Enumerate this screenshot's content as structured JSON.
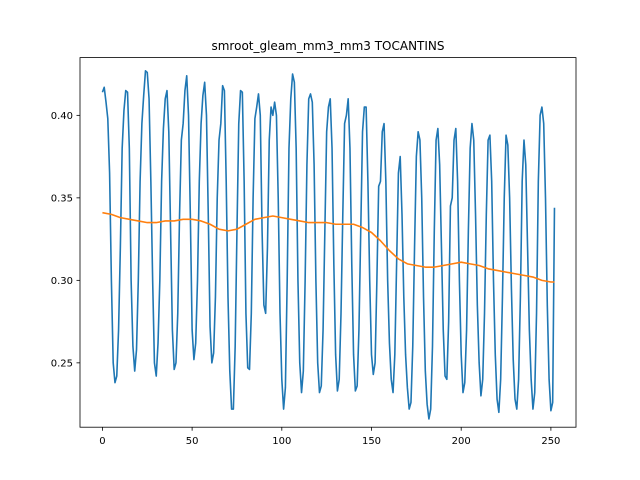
{
  "chart_data": {
    "type": "line",
    "title": "smroot_gleam_mm3_mm3 TOCANTINS",
    "xlabel": "",
    "ylabel": "",
    "xlim": [
      -12.5,
      264
    ],
    "ylim": [
      0.211,
      0.435
    ],
    "xticks": [
      0,
      50,
      100,
      150,
      200,
      250
    ],
    "yticks": [
      0.25,
      0.3,
      0.35,
      0.4
    ],
    "ytick_labels": [
      "0.25",
      "0.30",
      "0.35",
      "0.40"
    ],
    "grid": false,
    "legend": "none",
    "series": [
      {
        "color": "#1f77b4",
        "points": [
          [
            0,
            0.414
          ],
          [
            1,
            0.417
          ],
          [
            2,
            0.408
          ],
          [
            3,
            0.398
          ],
          [
            4,
            0.365
          ],
          [
            5,
            0.3
          ],
          [
            6,
            0.25
          ],
          [
            7,
            0.238
          ],
          [
            8,
            0.242
          ],
          [
            9,
            0.27
          ],
          [
            10,
            0.32
          ],
          [
            11,
            0.38
          ],
          [
            12,
            0.403
          ],
          [
            13,
            0.415
          ],
          [
            14,
            0.414
          ],
          [
            15,
            0.38
          ],
          [
            16,
            0.3
          ],
          [
            17,
            0.26
          ],
          [
            18,
            0.245
          ],
          [
            19,
            0.258
          ],
          [
            20,
            0.3
          ],
          [
            21,
            0.36
          ],
          [
            22,
            0.395
          ],
          [
            23,
            0.412
          ],
          [
            24,
            0.427
          ],
          [
            25,
            0.426
          ],
          [
            26,
            0.41
          ],
          [
            27,
            0.36
          ],
          [
            28,
            0.3
          ],
          [
            29,
            0.25
          ],
          [
            30,
            0.242
          ],
          [
            31,
            0.262
          ],
          [
            32,
            0.3
          ],
          [
            33,
            0.36
          ],
          [
            34,
            0.392
          ],
          [
            35,
            0.41
          ],
          [
            36,
            0.415
          ],
          [
            37,
            0.39
          ],
          [
            38,
            0.33
          ],
          [
            39,
            0.27
          ],
          [
            40,
            0.246
          ],
          [
            41,
            0.25
          ],
          [
            42,
            0.28
          ],
          [
            43,
            0.34
          ],
          [
            44,
            0.385
          ],
          [
            45,
            0.395
          ],
          [
            46,
            0.415
          ],
          [
            47,
            0.424
          ],
          [
            48,
            0.4
          ],
          [
            49,
            0.34
          ],
          [
            50,
            0.27
          ],
          [
            51,
            0.252
          ],
          [
            52,
            0.262
          ],
          [
            53,
            0.3
          ],
          [
            54,
            0.36
          ],
          [
            55,
            0.395
          ],
          [
            56,
            0.412
          ],
          [
            57,
            0.42
          ],
          [
            58,
            0.4
          ],
          [
            59,
            0.34
          ],
          [
            60,
            0.272
          ],
          [
            61,
            0.25
          ],
          [
            62,
            0.256
          ],
          [
            63,
            0.29
          ],
          [
            64,
            0.35
          ],
          [
            65,
            0.385
          ],
          [
            66,
            0.395
          ],
          [
            67,
            0.418
          ],
          [
            68,
            0.415
          ],
          [
            69,
            0.36
          ],
          [
            70,
            0.29
          ],
          [
            71,
            0.245
          ],
          [
            72,
            0.222
          ],
          [
            73,
            0.222
          ],
          [
            74,
            0.26
          ],
          [
            75,
            0.33
          ],
          [
            76,
            0.395
          ],
          [
            77,
            0.415
          ],
          [
            78,
            0.414
          ],
          [
            79,
            0.36
          ],
          [
            80,
            0.28
          ],
          [
            81,
            0.247
          ],
          [
            82,
            0.246
          ],
          [
            83,
            0.28
          ],
          [
            84,
            0.35
          ],
          [
            85,
            0.398
          ],
          [
            86,
            0.405
          ],
          [
            87,
            0.413
          ],
          [
            88,
            0.4
          ],
          [
            89,
            0.33
          ],
          [
            90,
            0.285
          ],
          [
            91,
            0.28
          ],
          [
            92,
            0.32
          ],
          [
            93,
            0.385
          ],
          [
            94,
            0.405
          ],
          [
            95,
            0.4
          ],
          [
            96,
            0.408
          ],
          [
            97,
            0.4
          ],
          [
            98,
            0.35
          ],
          [
            99,
            0.28
          ],
          [
            100,
            0.24
          ],
          [
            101,
            0.222
          ],
          [
            102,
            0.235
          ],
          [
            103,
            0.3
          ],
          [
            104,
            0.38
          ],
          [
            105,
            0.41
          ],
          [
            106,
            0.425
          ],
          [
            107,
            0.42
          ],
          [
            108,
            0.38
          ],
          [
            109,
            0.3
          ],
          [
            110,
            0.25
          ],
          [
            111,
            0.232
          ],
          [
            112,
            0.245
          ],
          [
            113,
            0.3
          ],
          [
            114,
            0.37
          ],
          [
            115,
            0.41
          ],
          [
            116,
            0.413
          ],
          [
            117,
            0.408
          ],
          [
            118,
            0.37
          ],
          [
            119,
            0.3
          ],
          [
            120,
            0.25
          ],
          [
            121,
            0.232
          ],
          [
            122,
            0.236
          ],
          [
            123,
            0.27
          ],
          [
            124,
            0.33
          ],
          [
            125,
            0.39
          ],
          [
            126,
            0.405
          ],
          [
            127,
            0.41
          ],
          [
            128,
            0.38
          ],
          [
            129,
            0.31
          ],
          [
            130,
            0.255
          ],
          [
            131,
            0.233
          ],
          [
            132,
            0.24
          ],
          [
            133,
            0.28
          ],
          [
            134,
            0.34
          ],
          [
            135,
            0.395
          ],
          [
            136,
            0.4
          ],
          [
            137,
            0.41
          ],
          [
            138,
            0.38
          ],
          [
            139,
            0.31
          ],
          [
            140,
            0.255
          ],
          [
            141,
            0.233
          ],
          [
            142,
            0.236
          ],
          [
            143,
            0.27
          ],
          [
            144,
            0.33
          ],
          [
            145,
            0.39
          ],
          [
            146,
            0.405
          ],
          [
            147,
            0.405
          ],
          [
            148,
            0.36
          ],
          [
            149,
            0.3
          ],
          [
            150,
            0.255
          ],
          [
            151,
            0.243
          ],
          [
            152,
            0.25
          ],
          [
            153,
            0.3
          ],
          [
            154,
            0.357
          ],
          [
            155,
            0.36
          ],
          [
            156,
            0.39
          ],
          [
            157,
            0.395
          ],
          [
            158,
            0.36
          ],
          [
            159,
            0.3
          ],
          [
            160,
            0.262
          ],
          [
            161,
            0.24
          ],
          [
            162,
            0.232
          ],
          [
            163,
            0.255
          ],
          [
            164,
            0.31
          ],
          [
            165,
            0.365
          ],
          [
            166,
            0.375
          ],
          [
            167,
            0.34
          ],
          [
            168,
            0.29
          ],
          [
            169,
            0.255
          ],
          [
            170,
            0.235
          ],
          [
            171,
            0.222
          ],
          [
            172,
            0.226
          ],
          [
            173,
            0.26
          ],
          [
            174,
            0.32
          ],
          [
            175,
            0.375
          ],
          [
            176,
            0.39
          ],
          [
            177,
            0.385
          ],
          [
            178,
            0.35
          ],
          [
            179,
            0.29
          ],
          [
            180,
            0.245
          ],
          [
            181,
            0.225
          ],
          [
            182,
            0.216
          ],
          [
            183,
            0.222
          ],
          [
            184,
            0.26
          ],
          [
            185,
            0.33
          ],
          [
            186,
            0.385
          ],
          [
            187,
            0.392
          ],
          [
            188,
            0.37
          ],
          [
            189,
            0.32
          ],
          [
            190,
            0.27
          ],
          [
            191,
            0.242
          ],
          [
            192,
            0.24
          ],
          [
            193,
            0.275
          ],
          [
            194,
            0.345
          ],
          [
            195,
            0.35
          ],
          [
            196,
            0.385
          ],
          [
            197,
            0.392
          ],
          [
            198,
            0.36
          ],
          [
            199,
            0.3
          ],
          [
            200,
            0.255
          ],
          [
            201,
            0.232
          ],
          [
            202,
            0.238
          ],
          [
            203,
            0.27
          ],
          [
            204,
            0.33
          ],
          [
            205,
            0.38
          ],
          [
            206,
            0.395
          ],
          [
            207,
            0.385
          ],
          [
            208,
            0.34
          ],
          [
            209,
            0.285
          ],
          [
            210,
            0.25
          ],
          [
            211,
            0.23
          ],
          [
            212,
            0.24
          ],
          [
            213,
            0.28
          ],
          [
            214,
            0.34
          ],
          [
            215,
            0.385
          ],
          [
            216,
            0.388
          ],
          [
            217,
            0.36
          ],
          [
            218,
            0.3
          ],
          [
            219,
            0.255
          ],
          [
            220,
            0.228
          ],
          [
            221,
            0.22
          ],
          [
            222,
            0.24
          ],
          [
            223,
            0.29
          ],
          [
            224,
            0.35
          ],
          [
            225,
            0.388
          ],
          [
            226,
            0.382
          ],
          [
            227,
            0.35
          ],
          [
            228,
            0.295
          ],
          [
            229,
            0.252
          ],
          [
            230,
            0.228
          ],
          [
            231,
            0.222
          ],
          [
            232,
            0.24
          ],
          [
            233,
            0.29
          ],
          [
            234,
            0.36
          ],
          [
            235,
            0.385
          ],
          [
            236,
            0.37
          ],
          [
            237,
            0.32
          ],
          [
            238,
            0.27
          ],
          [
            239,
            0.24
          ],
          [
            240,
            0.222
          ],
          [
            241,
            0.232
          ],
          [
            242,
            0.28
          ],
          [
            243,
            0.36
          ],
          [
            244,
            0.4
          ],
          [
            245,
            0.405
          ],
          [
            246,
            0.395
          ],
          [
            247,
            0.35
          ],
          [
            248,
            0.285
          ],
          [
            249,
            0.24
          ],
          [
            250,
            0.221
          ],
          [
            251,
            0.226
          ],
          [
            252,
            0.344
          ]
        ]
      },
      {
        "color": "#ff7f0e",
        "points": [
          [
            0,
            0.341
          ],
          [
            5,
            0.34
          ],
          [
            10,
            0.338
          ],
          [
            15,
            0.337
          ],
          [
            20,
            0.336
          ],
          [
            25,
            0.335
          ],
          [
            30,
            0.335
          ],
          [
            35,
            0.336
          ],
          [
            40,
            0.336
          ],
          [
            45,
            0.337
          ],
          [
            50,
            0.337
          ],
          [
            55,
            0.336
          ],
          [
            60,
            0.334
          ],
          [
            65,
            0.331
          ],
          [
            70,
            0.33
          ],
          [
            75,
            0.331
          ],
          [
            80,
            0.334
          ],
          [
            85,
            0.337
          ],
          [
            90,
            0.338
          ],
          [
            95,
            0.339
          ],
          [
            100,
            0.338
          ],
          [
            105,
            0.337
          ],
          [
            110,
            0.336
          ],
          [
            115,
            0.335
          ],
          [
            120,
            0.335
          ],
          [
            125,
            0.335
          ],
          [
            130,
            0.334
          ],
          [
            135,
            0.334
          ],
          [
            140,
            0.334
          ],
          [
            145,
            0.332
          ],
          [
            150,
            0.329
          ],
          [
            155,
            0.324
          ],
          [
            160,
            0.318
          ],
          [
            165,
            0.313
          ],
          [
            170,
            0.31
          ],
          [
            175,
            0.309
          ],
          [
            180,
            0.308
          ],
          [
            185,
            0.308
          ],
          [
            190,
            0.309
          ],
          [
            195,
            0.31
          ],
          [
            200,
            0.311
          ],
          [
            205,
            0.31
          ],
          [
            210,
            0.309
          ],
          [
            215,
            0.307
          ],
          [
            220,
            0.306
          ],
          [
            225,
            0.305
          ],
          [
            230,
            0.304
          ],
          [
            235,
            0.303
          ],
          [
            240,
            0.302
          ],
          [
            245,
            0.3
          ],
          [
            250,
            0.299
          ],
          [
            252,
            0.299
          ]
        ]
      }
    ]
  }
}
